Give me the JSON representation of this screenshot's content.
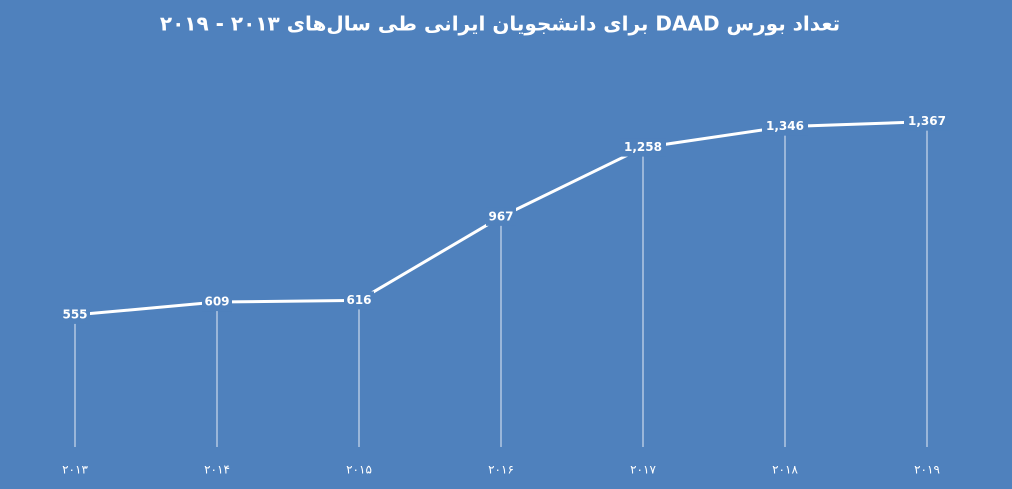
{
  "chart_data": {
    "type": "line",
    "title": "تعداد بورس DAAD برای دانشجویان ایرانی طی سال‌های ۲۰۱۳ - ۲۰۱۹",
    "categories": [
      "۲۰۱۳",
      "۲۰۱۴",
      "۲۰۱۵",
      "۲۰۱۶",
      "۲۰۱۷",
      "۲۰۱۸",
      "۲۰۱۹"
    ],
    "values": [
      555,
      609,
      616,
      967,
      1258,
      1346,
      1367
    ],
    "value_labels": [
      "555",
      "609",
      "616",
      "967",
      "1,258",
      "1,346",
      "1,367"
    ],
    "color": "#ffffff",
    "ylim": [
      0,
      1500
    ],
    "drop_lines": true
  }
}
